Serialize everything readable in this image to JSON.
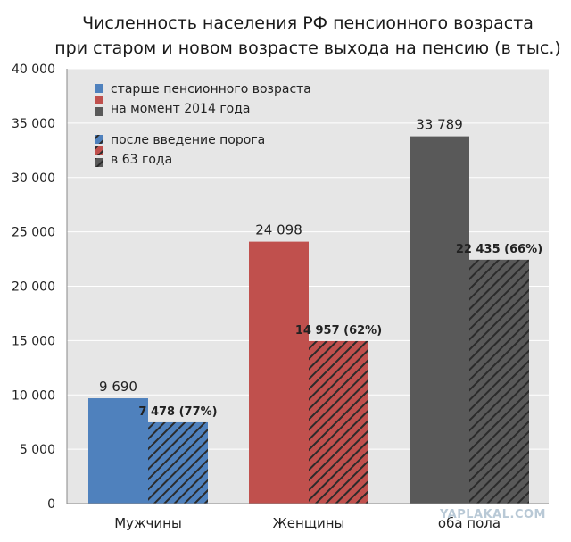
{
  "chart_data": {
    "type": "bar",
    "title_lines": [
      "Численность населения РФ пенсионного возраста",
      "при старом и новом возрасте выхода на пенсию (в тыс.)"
    ],
    "categories": [
      "Мужчины",
      "Женщины",
      "оба пола"
    ],
    "ylim": [
      0,
      40000
    ],
    "yticks": [
      0,
      5000,
      10000,
      15000,
      20000,
      25000,
      30000,
      35000,
      40000
    ],
    "ytick_labels": [
      "0",
      "5 000",
      "10 000",
      "15 000",
      "20 000",
      "25 000",
      "30 000",
      "35 000",
      "40 000"
    ],
    "grid": true,
    "series": [
      {
        "values": [
          9690,
          24098,
          33789
        ],
        "data_labels": [
          "9 690",
          "24 098",
          "33 789"
        ],
        "colors": [
          "#4f81bd",
          "#c0504d",
          "#595959"
        ],
        "pattern": "solid"
      },
      {
        "values": [
          7478,
          14957,
          22435
        ],
        "data_labels": [
          "7 478 (77%)",
          "14 957 (62%)",
          "22 435 (66%)"
        ],
        "colors": [
          "#4f81bd",
          "#c0504d",
          "#595959"
        ],
        "pattern": "hatched"
      }
    ],
    "legend": {
      "placement": "top-left",
      "groups": [
        {
          "lines": [
            "старше пенсионного возраста",
            "на момент 2014 года"
          ],
          "pattern": "solid",
          "colors": [
            "#4f81bd",
            "#c0504d",
            "#595959"
          ]
        },
        {
          "lines": [
            "после введение порога",
            "в 63 года"
          ],
          "pattern": "hatched",
          "colors": [
            "#4f81bd",
            "#c0504d",
            "#595959"
          ]
        }
      ]
    }
  },
  "watermark": "YAPLAKAL.COM"
}
